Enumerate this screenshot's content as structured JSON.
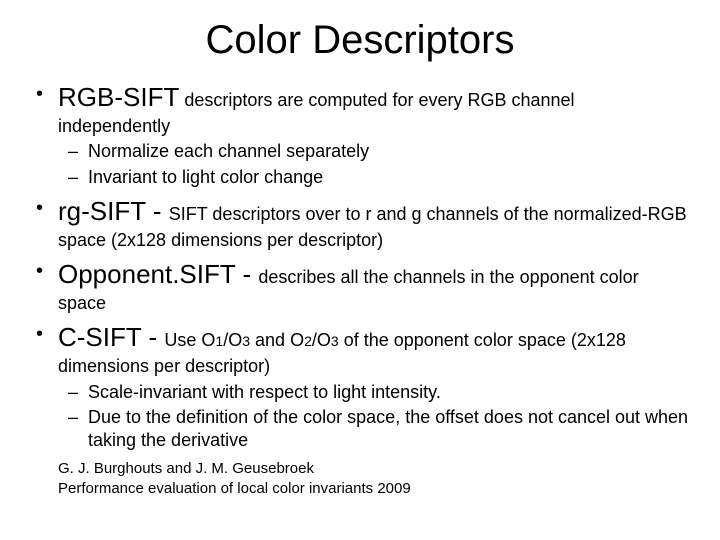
{
  "title": "Color Descriptors",
  "items": [
    {
      "term": "RGB-SIFT",
      "desc_a": " descriptors are computed for every RGB channel independently",
      "subs": [
        "Normalize each channel separately",
        "Invariant to light color change"
      ]
    },
    {
      "term": "rg-SIFT",
      "dash": " - ",
      "desc_a": "SIFT descriptors over to r and g channels of the normalized-RGB space (2x128 dimensions per descriptor)"
    },
    {
      "term": "Opponent.SIFT",
      "dash": " - ",
      "desc_a": "describes all the channels in the opponent color space"
    },
    {
      "term": "C-SIFT",
      "dash": " - ",
      "desc_a": "Use O",
      "sub1": "1",
      "mid1": "/O",
      "sub2": "3",
      "mid2": " and O",
      "sub3": "2",
      "mid3": "/O",
      "sub4": "3",
      "desc_b": " of the opponent color space (2x128 dimensions per descriptor)",
      "subs": [
        "Scale-invariant with respect to light intensity.",
        "Due to the definition of the color space, the offset does not cancel out when taking the derivative"
      ]
    }
  ],
  "refs": [
    "G. J. Burghouts and J. M. Geusebroek",
    "Performance evaluation of local color invariants 2009"
  ]
}
